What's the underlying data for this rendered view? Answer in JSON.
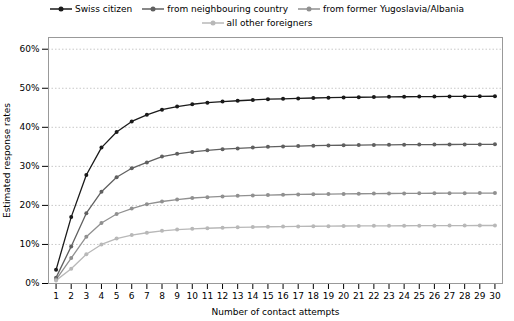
{
  "chart_data": {
    "type": "line",
    "x": [
      1,
      2,
      3,
      4,
      5,
      6,
      7,
      8,
      9,
      10,
      11,
      12,
      13,
      14,
      15,
      16,
      17,
      18,
      19,
      20,
      21,
      22,
      23,
      24,
      25,
      26,
      27,
      28,
      29,
      30
    ],
    "series": [
      {
        "name": "Swiss citizen",
        "color": "#1a1a1a",
        "values": [
          3.5,
          17.0,
          27.8,
          34.8,
          38.8,
          41.5,
          43.2,
          44.5,
          45.3,
          45.9,
          46.3,
          46.6,
          46.8,
          47.0,
          47.2,
          47.3,
          47.4,
          47.5,
          47.6,
          47.65,
          47.7,
          47.75,
          47.8,
          47.83,
          47.86,
          47.88,
          47.9,
          47.92,
          47.94,
          47.96
        ]
      },
      {
        "name": "from neighbouring country",
        "color": "#606060",
        "values": [
          1.5,
          9.5,
          18.0,
          23.5,
          27.2,
          29.5,
          31.0,
          32.5,
          33.2,
          33.7,
          34.1,
          34.4,
          34.6,
          34.8,
          35.0,
          35.1,
          35.2,
          35.3,
          35.35,
          35.4,
          35.45,
          35.5,
          35.52,
          35.55,
          35.57,
          35.59,
          35.6,
          35.61,
          35.62,
          35.63
        ]
      },
      {
        "name": "from former Yugoslavia/Albania",
        "color": "#909090",
        "values": [
          1.0,
          6.5,
          12.0,
          15.5,
          17.8,
          19.2,
          20.3,
          21.0,
          21.5,
          21.9,
          22.1,
          22.3,
          22.45,
          22.55,
          22.65,
          22.73,
          22.8,
          22.86,
          22.91,
          22.95,
          22.99,
          23.02,
          23.05,
          23.07,
          23.09,
          23.11,
          23.13,
          23.14,
          23.15,
          23.17
        ]
      },
      {
        "name": "all other foreigners",
        "color": "#b8b8b8",
        "values": [
          0.8,
          3.8,
          7.5,
          10.0,
          11.5,
          12.4,
          13.0,
          13.5,
          13.8,
          14.0,
          14.15,
          14.28,
          14.38,
          14.46,
          14.53,
          14.58,
          14.62,
          14.66,
          14.69,
          14.72,
          14.74,
          14.76,
          14.78,
          14.79,
          14.81,
          14.82,
          14.83,
          14.84,
          14.85,
          14.86
        ]
      }
    ],
    "xlabel": "Number of contact attempts",
    "ylabel": "Estimated response rates",
    "xlim": [
      0.5,
      30.5
    ],
    "xticks": [
      1,
      2,
      3,
      4,
      5,
      6,
      7,
      8,
      9,
      10,
      11,
      12,
      13,
      14,
      15,
      16,
      17,
      18,
      19,
      20,
      21,
      22,
      23,
      24,
      25,
      26,
      27,
      28,
      29,
      30
    ],
    "ylim": [
      0,
      63
    ],
    "yticks": [
      {
        "value": 0,
        "label": "0%"
      },
      {
        "value": 10,
        "label": "10%"
      },
      {
        "value": 20,
        "label": "20%"
      },
      {
        "value": 30,
        "label": "30%"
      },
      {
        "value": 40,
        "label": "40%"
      },
      {
        "value": 50,
        "label": "50%"
      },
      {
        "value": 60,
        "label": "60%"
      }
    ],
    "grid": true,
    "marker": "circle"
  }
}
